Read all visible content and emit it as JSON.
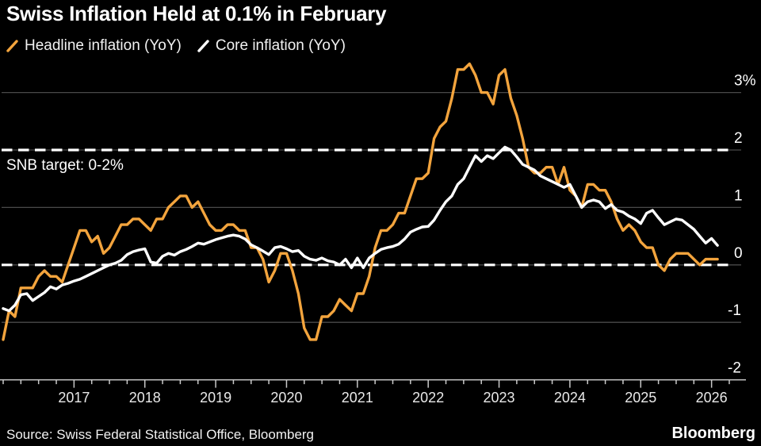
{
  "header": {
    "title": "Swiss Inflation Held at 0.1% in February"
  },
  "legend": [
    {
      "label": "Headline inflation (YoY)",
      "color": "#F3A43D"
    },
    {
      "label": "Core inflation (YoY)",
      "color": "#FFFFFF"
    }
  ],
  "footer": {
    "source": "Source: Swiss Federal Statistical Office, Bloomberg",
    "logo": "Bloomberg"
  },
  "colors": {
    "background": "#000000",
    "gridline": "#4a4a4a",
    "axis": "#c9c9c9",
    "reference_dash": "#ffffff",
    "headline": "#F3A43D",
    "core": "#FFFFFF"
  },
  "chart_data": {
    "type": "line",
    "title": "Swiss Inflation Held at 0.1% in February",
    "x_start": "2016-01",
    "x_end": "2026-02",
    "x_frequency": "monthly",
    "x_tick_years": [
      "2017",
      "2018",
      "2019",
      "2020",
      "2021",
      "2022",
      "2023",
      "2024",
      "2025",
      "2026"
    ],
    "yticks": [
      {
        "label": "3%",
        "value": 3
      },
      {
        "label": "2",
        "value": 2
      },
      {
        "label": "1",
        "value": 1
      },
      {
        "label": "0",
        "value": 0
      },
      {
        "label": "-1",
        "value": -1
      },
      {
        "label": "-2",
        "value": -2
      }
    ],
    "ylim": [
      -2.2,
      3.6
    ],
    "grid": "horizontal",
    "legend_position": "top-left",
    "reference_lines": {
      "style": "dashed",
      "values": [
        2,
        0
      ],
      "label": "SNB target: 0-2%"
    },
    "series": [
      {
        "name": "Headline inflation (YoY)",
        "color": "#F3A43D",
        "values": [
          -1.3,
          -0.8,
          -0.9,
          -0.4,
          -0.4,
          -0.4,
          -0.2,
          -0.1,
          -0.2,
          -0.2,
          -0.3,
          0.0,
          0.3,
          0.6,
          0.6,
          0.4,
          0.5,
          0.2,
          0.3,
          0.5,
          0.7,
          0.7,
          0.8,
          0.8,
          0.7,
          0.6,
          0.8,
          0.8,
          1.0,
          1.1,
          1.2,
          1.2,
          1.0,
          1.1,
          0.9,
          0.7,
          0.6,
          0.6,
          0.7,
          0.7,
          0.6,
          0.6,
          0.3,
          0.3,
          0.1,
          -0.3,
          -0.1,
          0.2,
          0.2,
          -0.1,
          -0.5,
          -1.1,
          -1.3,
          -1.3,
          -0.9,
          -0.9,
          -0.8,
          -0.6,
          -0.7,
          -0.8,
          -0.5,
          -0.5,
          -0.2,
          0.3,
          0.6,
          0.6,
          0.7,
          0.9,
          0.9,
          1.2,
          1.5,
          1.5,
          1.6,
          2.2,
          2.4,
          2.5,
          2.9,
          3.4,
          3.4,
          3.5,
          3.3,
          3.0,
          3.0,
          2.8,
          3.3,
          3.4,
          2.9,
          2.6,
          2.2,
          1.7,
          1.6,
          1.6,
          1.7,
          1.7,
          1.4,
          1.7,
          1.3,
          1.2,
          1.0,
          1.4,
          1.4,
          1.3,
          1.3,
          1.1,
          0.8,
          0.6,
          0.7,
          0.6,
          0.4,
          0.3,
          0.3,
          0.0,
          -0.1,
          0.1,
          0.2,
          0.2,
          0.2,
          0.1,
          0.0,
          0.1,
          0.1,
          0.1
        ]
      },
      {
        "name": "Core inflation (YoY)",
        "color": "#FFFFFF",
        "values": [
          -0.76,
          -0.8,
          -0.7,
          -0.52,
          -0.5,
          -0.62,
          -0.55,
          -0.48,
          -0.38,
          -0.42,
          -0.35,
          -0.32,
          -0.28,
          -0.25,
          -0.2,
          -0.15,
          -0.1,
          -0.05,
          0.0,
          0.03,
          0.08,
          0.18,
          0.23,
          0.26,
          0.28,
          0.05,
          0.03,
          0.15,
          0.2,
          0.17,
          0.23,
          0.27,
          0.32,
          0.38,
          0.36,
          0.4,
          0.44,
          0.47,
          0.5,
          0.52,
          0.5,
          0.45,
          0.35,
          0.3,
          0.24,
          0.18,
          0.3,
          0.32,
          0.28,
          0.23,
          0.25,
          0.15,
          0.1,
          0.08,
          0.12,
          0.07,
          0.05,
          0.0,
          0.1,
          -0.05,
          0.12,
          -0.05,
          0.12,
          0.2,
          0.27,
          0.3,
          0.32,
          0.36,
          0.45,
          0.57,
          0.62,
          0.66,
          0.67,
          0.78,
          0.95,
          1.1,
          1.2,
          1.4,
          1.5,
          1.7,
          1.9,
          1.8,
          1.9,
          1.85,
          1.95,
          2.05,
          2.0,
          1.88,
          1.75,
          1.7,
          1.65,
          1.55,
          1.5,
          1.45,
          1.4,
          1.35,
          1.4,
          1.2,
          1.0,
          1.1,
          1.13,
          1.1,
          0.98,
          1.05,
          0.95,
          0.92,
          0.85,
          0.8,
          0.72,
          0.9,
          0.95,
          0.82,
          0.7,
          0.75,
          0.8,
          0.78,
          0.7,
          0.62,
          0.5,
          0.38,
          0.46,
          0.34
        ]
      }
    ]
  }
}
